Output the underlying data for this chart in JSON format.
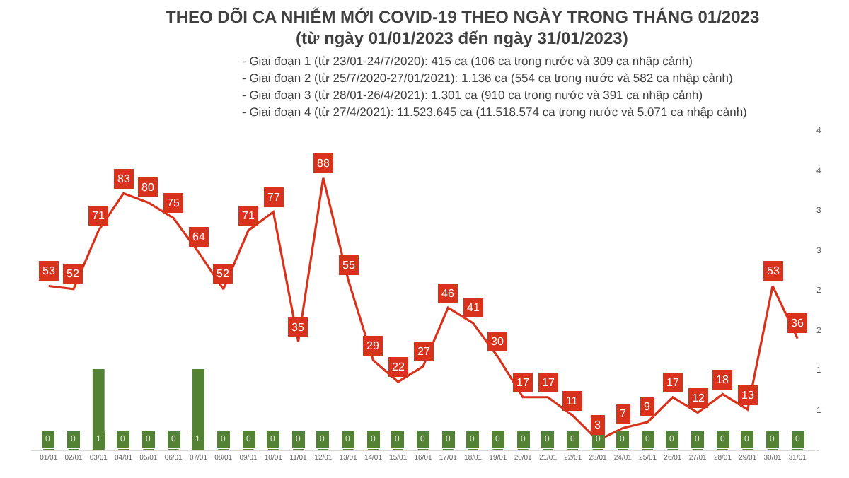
{
  "chart_data": {
    "type": "line",
    "title": "THEO DÕI CA NHIỄM MỚI COVID-19 THEO NGÀY TRONG THÁNG 01/2023",
    "subtitle": "(từ ngày 01/01/2023 đến ngày 31/01/2023)",
    "annotations": [
      "- Giai đoạn 1 (từ 23/01-24/7/2020): 415 ca (106 ca trong nước và 309 ca nhập cảnh)",
      "- Giai đoạn 2 (từ 25/7/2020-27/01/2021): 1.136 ca (554 ca trong nước và 582 ca nhập cảnh)",
      "- Giai đoạn 3 (từ 28/01-26/4/2021): 1.301 ca (910 ca trong nước và 391 ca nhập cảnh)",
      "- Giai đoạn 4 (từ 27/4/2021): 11.523.645 ca (11.518.574 ca trong nước và 5.071 ca nhập cảnh)"
    ],
    "categories": [
      "01/01",
      "02/01",
      "03/01",
      "04/01",
      "05/01",
      "06/01",
      "07/01",
      "08/01",
      "09/01",
      "10/01",
      "11/01",
      "12/01",
      "13/01",
      "14/01",
      "15/01",
      "16/01",
      "17/01",
      "18/01",
      "19/01",
      "20/01",
      "21/01",
      "22/01",
      "23/01",
      "24/01",
      "25/01",
      "26/01",
      "27/01",
      "28/01",
      "29/01",
      "30/01",
      "31/01"
    ],
    "series": [
      {
        "type": "bar",
        "axis": "y2",
        "color": "#548235",
        "values": [
          0,
          0,
          1,
          0,
          0,
          0,
          1,
          0,
          0,
          0,
          0,
          0,
          0,
          0,
          0,
          0,
          0,
          0,
          0,
          0,
          0,
          0,
          0,
          0,
          0,
          0,
          0,
          0,
          0,
          0,
          0
        ]
      },
      {
        "color": "#d9321c",
        "values": [
          53,
          52,
          71,
          83,
          80,
          75,
          64,
          52,
          71,
          77,
          35,
          88,
          55,
          29,
          22,
          27,
          46,
          41,
          30,
          17,
          17,
          11,
          3,
          7,
          9,
          17,
          12,
          18,
          13,
          53,
          36
        ]
      }
    ],
    "y2lim": [
      0,
      4
    ],
    "y2ticks": [
      {
        "value": 0,
        "label": "-"
      },
      {
        "value": 0.5,
        "label": "1"
      },
      1,
      {
        "value": 1.5,
        "label": "2"
      },
      2,
      {
        "value": 2.5,
        "label": "3"
      },
      3,
      {
        "value": 3.5,
        "label": "4"
      },
      4
    ],
    "data_labels": true,
    "grid": false,
    "marker": "none",
    "line_style": "solid"
  }
}
